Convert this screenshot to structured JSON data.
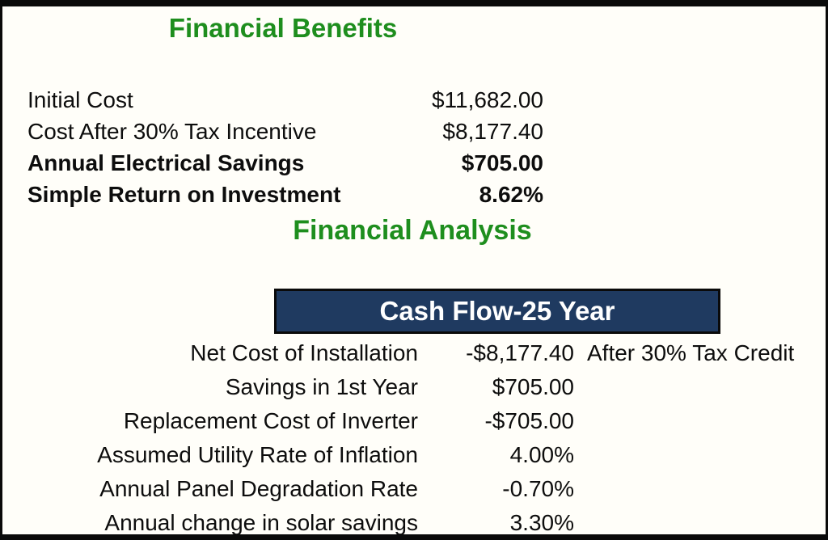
{
  "page": {
    "background_color": "#fffef9",
    "frame_color": "#0a0a0a",
    "heading_color": "#1e8e1e"
  },
  "benefits": {
    "title": "Financial Benefits",
    "rows": [
      {
        "label": "Initial Cost",
        "value": "$11,682.00",
        "bold": false
      },
      {
        "label": "Cost After 30% Tax Incentive",
        "value": "$8,177.40",
        "bold": false
      },
      {
        "label": "Annual Electrical Savings",
        "value": "$705.00",
        "bold": true
      },
      {
        "label": "Simple Return on Investment",
        "value": "8.62%",
        "bold": true
      }
    ]
  },
  "analysis": {
    "title": "Financial Analysis",
    "cashflow": {
      "header": "Cash Flow-25 Year",
      "header_bg_color": "#1f3a60",
      "header_text_color": "#ffffff",
      "rows": [
        {
          "label": "Net Cost of Installation",
          "value": "-$8,177.40",
          "note": "After 30% Tax Credit"
        },
        {
          "label": "Savings in 1st Year",
          "value": "$705.00",
          "note": ""
        },
        {
          "label": "Replacement Cost of Inverter",
          "value": "-$705.00",
          "note": ""
        },
        {
          "label": "Assumed Utility Rate of Inflation",
          "value": "4.00%",
          "note": ""
        },
        {
          "label": "Annual Panel Degradation Rate",
          "value": "-0.70%",
          "note": ""
        },
        {
          "label": "Annual change in solar savings",
          "value": "3.30%",
          "note": ""
        }
      ]
    }
  }
}
